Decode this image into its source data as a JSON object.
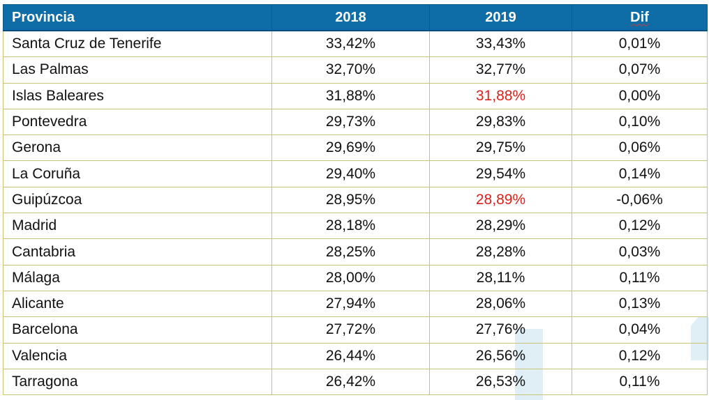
{
  "table": {
    "headers": [
      "Provincia",
      "2018",
      "2019",
      "Dif"
    ],
    "rows": [
      {
        "provincia": "Santa Cruz de Tenerife",
        "y2018": "33,42%",
        "y2019": "33,43%",
        "dif": "0,01%",
        "highlight2019": false
      },
      {
        "provincia": "Las Palmas",
        "y2018": "32,70%",
        "y2019": "32,77%",
        "dif": "0,07%",
        "highlight2019": false
      },
      {
        "provincia": "Islas Baleares",
        "y2018": "31,88%",
        "y2019": "31,88%",
        "dif": "0,00%",
        "highlight2019": true
      },
      {
        "provincia": "Pontevedra",
        "y2018": "29,73%",
        "y2019": "29,83%",
        "dif": "0,10%",
        "highlight2019": false
      },
      {
        "provincia": "Gerona",
        "y2018": "29,69%",
        "y2019": "29,75%",
        "dif": "0,06%",
        "highlight2019": false
      },
      {
        "provincia": "La Coruña",
        "y2018": "29,40%",
        "y2019": "29,54%",
        "dif": "0,14%",
        "highlight2019": false
      },
      {
        "provincia": "Guipúzcoa",
        "y2018": "28,95%",
        "y2019": "28,89%",
        "dif": "-0,06%",
        "highlight2019": true
      },
      {
        "provincia": "Madrid",
        "y2018": "28,18%",
        "y2019": "28,29%",
        "dif": "0,12%",
        "highlight2019": false
      },
      {
        "provincia": "Cantabria",
        "y2018": "28,25%",
        "y2019": "28,28%",
        "dif": "0,03%",
        "highlight2019": false
      },
      {
        "provincia": "Málaga",
        "y2018": "28,00%",
        "y2019": "28,11%",
        "dif": "0,11%",
        "highlight2019": false
      },
      {
        "provincia": "Alicante",
        "y2018": "27,94%",
        "y2019": "28,06%",
        "dif": "0,13%",
        "highlight2019": false
      },
      {
        "provincia": "Barcelona",
        "y2018": "27,72%",
        "y2019": "27,76%",
        "dif": "0,04%",
        "highlight2019": false
      },
      {
        "provincia": "Valencia",
        "y2018": "26,44%",
        "y2019": "26,56%",
        "dif": "0,12%",
        "highlight2019": false
      },
      {
        "provincia": "Tarragona",
        "y2018": "26,42%",
        "y2019": "26,53%",
        "dif": "0,11%",
        "highlight2019": false
      }
    ]
  },
  "colors": {
    "header_bg": "#0e6da6",
    "header_text": "#ffffff",
    "highlight_text": "#e0201a",
    "border": "#c9c374"
  }
}
